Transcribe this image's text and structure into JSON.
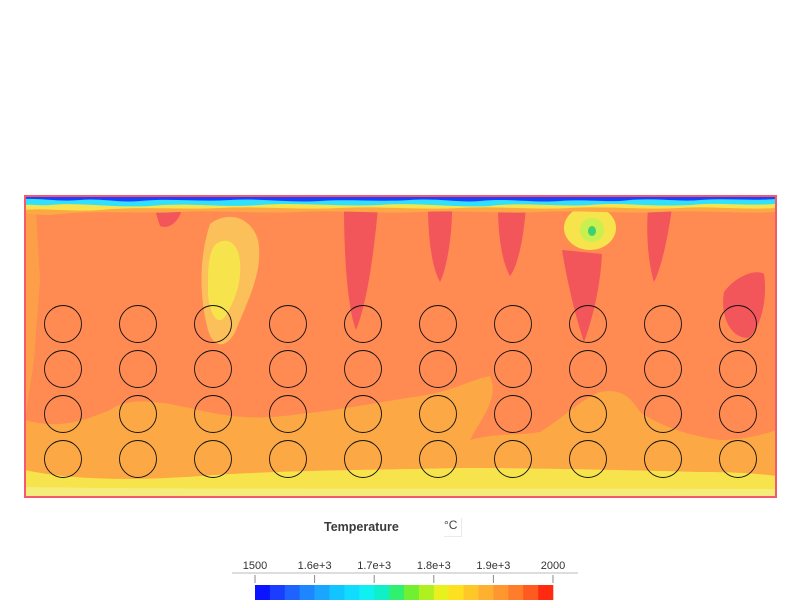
{
  "legend": {
    "title": "Temperature",
    "unit": "°C",
    "tick_labels": [
      "1500",
      "1.6e+3",
      "1.7e+3",
      "1.8e+3",
      "1.9e+3",
      "2000"
    ],
    "range": [
      1500,
      2000
    ]
  },
  "colorbar": {
    "colors": [
      "#0a14ff",
      "#1a3dff",
      "#1e63ff",
      "#1e86ff",
      "#1aa6ff",
      "#12c4ff",
      "#10dcff",
      "#10f0f0",
      "#10f0c8",
      "#30f070",
      "#70f030",
      "#b0f020",
      "#e8f020",
      "#ffe020",
      "#ffc828",
      "#ffb030",
      "#ff9630",
      "#ff7c2a",
      "#ff5a20",
      "#ff2a10"
    ]
  },
  "colors": {
    "background": "#ff8a52",
    "hot": "#f2555a",
    "warm": "#fba845",
    "yellow": "#f7e44c",
    "cold": "#2040ff",
    "cyan": "#30e0ff",
    "border": "#f45a6a"
  },
  "tubes": {
    "columns": 10,
    "rows": 4
  }
}
